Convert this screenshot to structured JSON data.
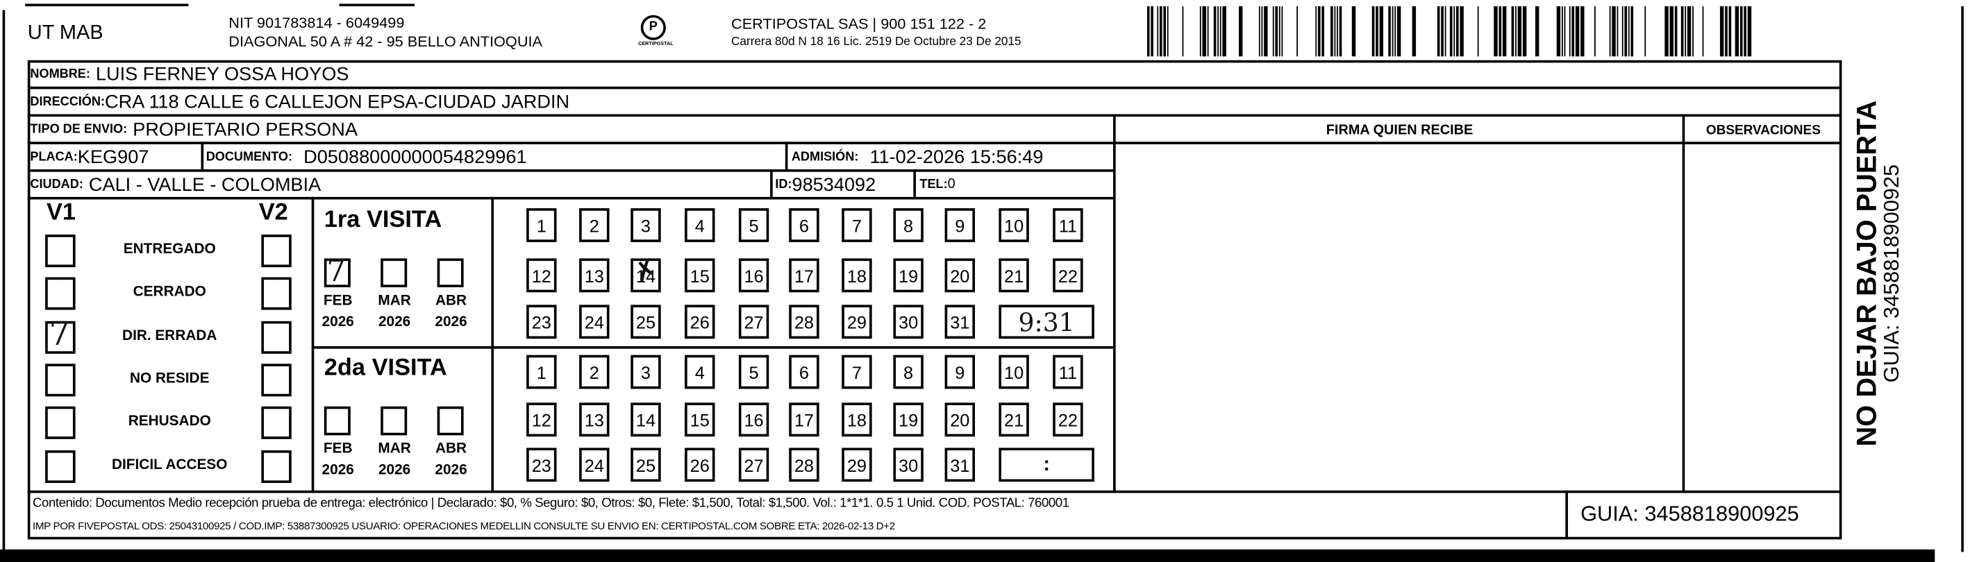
{
  "header": {
    "company": "UT MAB",
    "nit": "NIT 901783814 - 6049499",
    "address": "DIAGONAL 50 A # 42 - 95  BELLO  ANTIOQUIA",
    "logo_text": "CERTIPOSTAL",
    "carrier": "CERTIPOSTAL SAS | 900 151 122 - 2",
    "carrier_license": "Carrera 80d N 18 16  Lic. 2519 De Octubre 23 De 2015"
  },
  "fields": {
    "nombre_label": "NOMBRE:",
    "nombre": "LUIS FERNEY OSSA HOYOS",
    "direccion_label": "DIRECCIÓN:",
    "direccion": "CRA 118 CALLE 6 CALLEJON EPSA-CIUDAD JARDIN",
    "tipo_label": "TIPO DE ENVIO:",
    "tipo": "PROPIETARIO PERSONA",
    "placa_label": "PLACA:",
    "placa": "KEG907",
    "documento_label": "DOCUMENTO:",
    "documento": "D05088000000054829961",
    "admision_label": "ADMISIÓN:",
    "admision": "11-02-2026 15:56:49",
    "ciudad_label": "CIUDAD:",
    "ciudad": "CALI - VALLE - COLOMBIA",
    "id_label": "ID:",
    "id": "98534092",
    "tel_label": "TEL:",
    "tel": "0"
  },
  "firma_header": "FIRMA QUIEN RECIBE",
  "observaciones_header": "OBSERVACIONES",
  "status": {
    "v1_label": "V1",
    "v2_label": "V2",
    "options": [
      {
        "label": "ENTREGADO",
        "v1": false,
        "v2": false
      },
      {
        "label": "CERRADO",
        "v1": false,
        "v2": false
      },
      {
        "label": "DIR. ERRADA",
        "v1": true,
        "v2": false
      },
      {
        "label": "NO RESIDE",
        "v1": false,
        "v2": false
      },
      {
        "label": "REHUSADO",
        "v1": false,
        "v2": false
      },
      {
        "label": "DIFICIL ACCESO",
        "v1": false,
        "v2": false
      }
    ]
  },
  "visits": [
    {
      "title": "1ra VISITA",
      "months": [
        {
          "m": "FEB",
          "y": "2026",
          "checked": true
        },
        {
          "m": "MAR",
          "y": "2026",
          "checked": false
        },
        {
          "m": "ABR",
          "y": "2026",
          "checked": false
        }
      ],
      "marked_day": 14,
      "time": "9:31"
    },
    {
      "title": "2da VISITA",
      "months": [
        {
          "m": "FEB",
          "y": "2026",
          "checked": false
        },
        {
          "m": "MAR",
          "y": "2026",
          "checked": false
        },
        {
          "m": "ABR",
          "y": "2026",
          "checked": false
        }
      ],
      "marked_day": null,
      "time": ":"
    }
  ],
  "side": {
    "warning": "NO DEJAR BAJO PUERTA",
    "guia": "GUIA: 3458818900925"
  },
  "footer": {
    "line1": "Contenido: Documentos Medio recepción prueba de entrega: electrónico | Declarado: $0, % Seguro: $0, Otros: $0, Flete: $1,500, Total: $1,500. Vol.: 1*1*1. 0.5  1 Unid. COD. POSTAL: 760001",
    "line2": "IMP POR FIVEPOSTAL ODS: 25043100925 / COD.IMP: 53887300925 USUARIO: OPERACIONES MEDELLIN CONSULTE SU ENVIO EN: CERTIPOSTAL.COM SOBRE ETA: 2026-02-13 D+2",
    "guia": "GUIA: 3458818900925"
  },
  "icons": {
    "logo": "certipostal-logo",
    "barcode": "barcode"
  }
}
